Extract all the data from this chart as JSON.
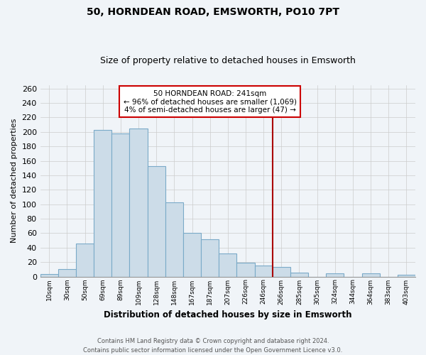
{
  "title": "50, HORNDEAN ROAD, EMSWORTH, PO10 7PT",
  "subtitle": "Size of property relative to detached houses in Emsworth",
  "xlabel": "Distribution of detached houses by size in Emsworth",
  "ylabel": "Number of detached properties",
  "bar_labels": [
    "10sqm",
    "30sqm",
    "50sqm",
    "69sqm",
    "89sqm",
    "109sqm",
    "128sqm",
    "148sqm",
    "167sqm",
    "187sqm",
    "207sqm",
    "226sqm",
    "246sqm",
    "266sqm",
    "285sqm",
    "305sqm",
    "324sqm",
    "344sqm",
    "364sqm",
    "383sqm",
    "403sqm"
  ],
  "bar_values": [
    3,
    10,
    46,
    203,
    198,
    205,
    153,
    103,
    60,
    52,
    32,
    19,
    15,
    13,
    5,
    0,
    4,
    0,
    4,
    0,
    2
  ],
  "bar_color": "#ccdce8",
  "bar_edge_color": "#7aaac8",
  "vline_x_index": 12.5,
  "vline_color": "#aa0000",
  "annotation_title": "50 HORNDEAN ROAD: 241sqm",
  "annotation_line1": "← 96% of detached houses are smaller (1,069)",
  "annotation_line2": "4% of semi-detached houses are larger (47) →",
  "annotation_box_color": "white",
  "annotation_box_edge": "#cc0000",
  "ylim": [
    0,
    265
  ],
  "yticks": [
    0,
    20,
    40,
    60,
    80,
    100,
    120,
    140,
    160,
    180,
    200,
    220,
    240,
    260
  ],
  "footer_line1": "Contains HM Land Registry data © Crown copyright and database right 2024.",
  "footer_line2": "Contains public sector information licensed under the Open Government Licence v3.0.",
  "bg_color": "#f0f4f8",
  "grid_color": "#cccccc"
}
